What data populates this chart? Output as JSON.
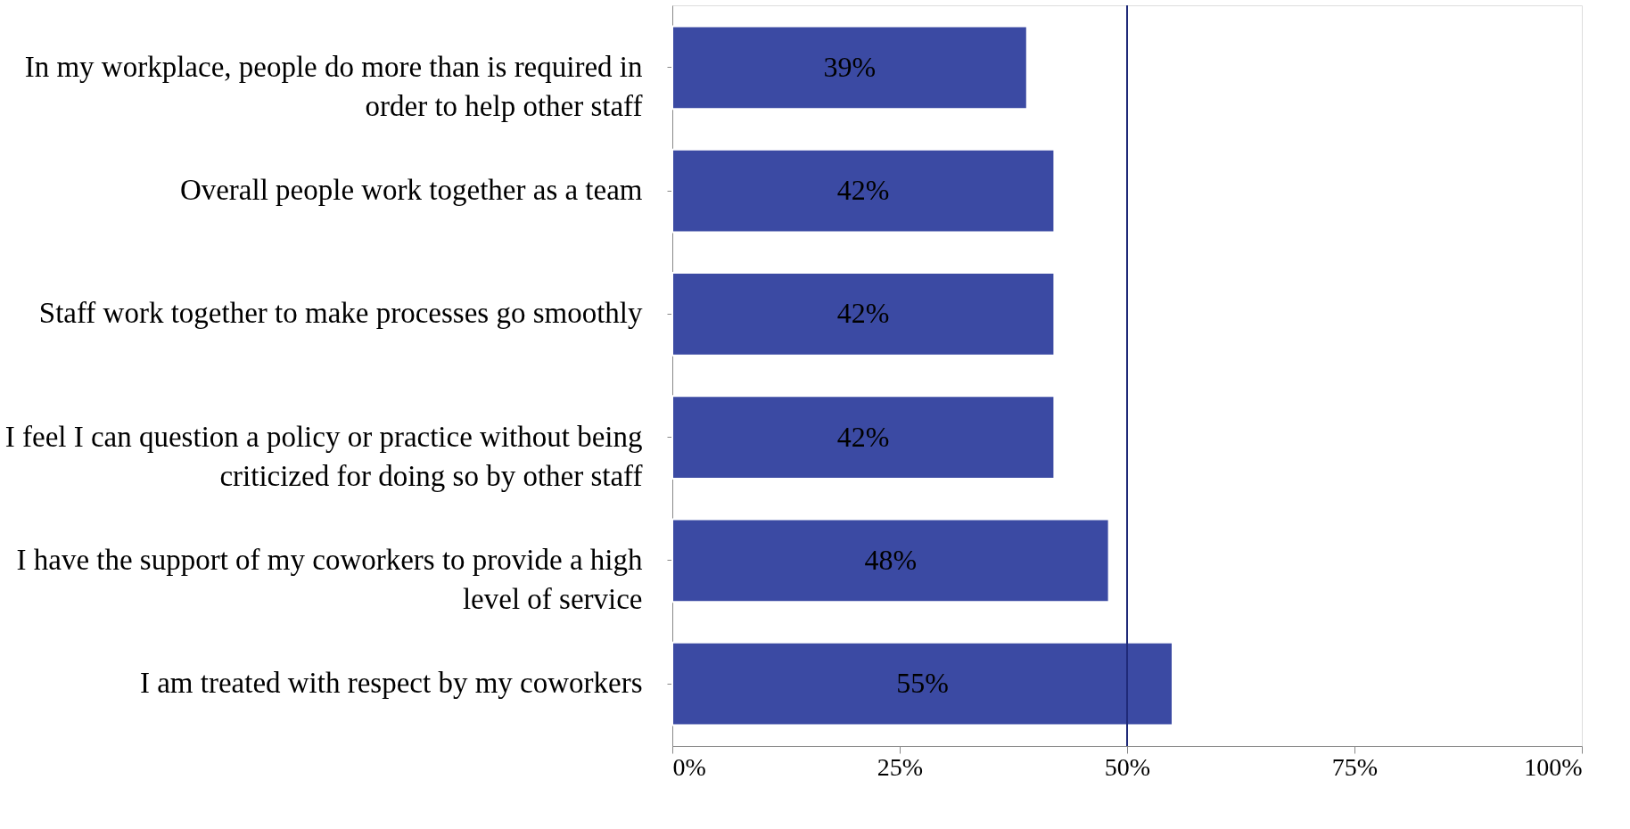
{
  "chart_data": {
    "type": "bar",
    "orientation": "horizontal",
    "categories": [
      "In my workplace, people do more than is required in order to help other staff",
      "Overall people work together as a team",
      "Staff work together to make processes go smoothly",
      "I feel I can question a policy or practice without being criticized for doing so by other staff",
      "I have the support of my coworkers to provide a high level of service",
      "I am treated with respect by my coworkers"
    ],
    "values": [
      39,
      42,
      42,
      42,
      48,
      55
    ],
    "value_labels": [
      "39%",
      "42%",
      "42%",
      "42%",
      "48%",
      "55%"
    ],
    "color": "#3b4aa3",
    "xlim": [
      0,
      100
    ],
    "xticks": [
      {
        "value": 0,
        "label": "0%"
      },
      {
        "value": 25,
        "label": "25%"
      },
      {
        "value": 50,
        "label": "50%"
      },
      {
        "value": 75,
        "label": "75%"
      },
      {
        "value": 100,
        "label": "100%"
      }
    ],
    "ref_lines": [
      {
        "axis": "x",
        "value": 50,
        "color": "#1f2a78"
      }
    ],
    "grid": false
  }
}
